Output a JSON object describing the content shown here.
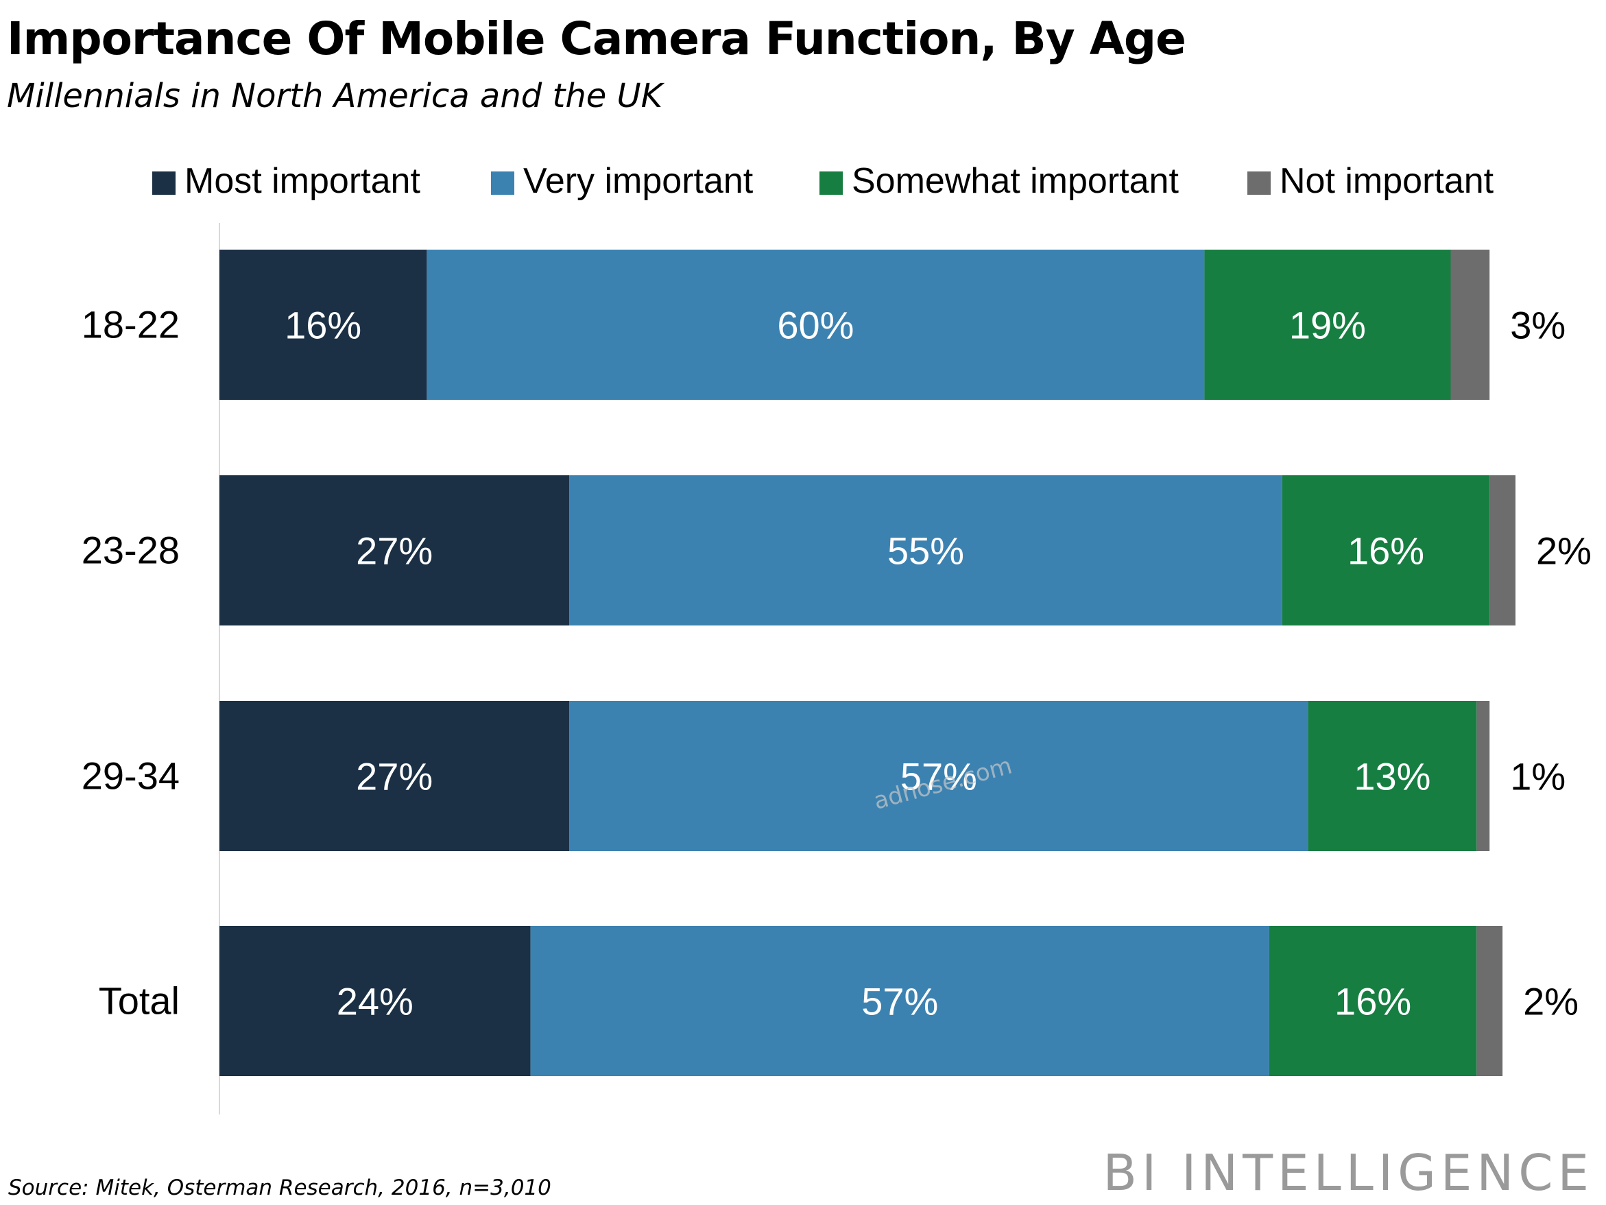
{
  "title": "Importance Of Mobile Camera Function, By Age",
  "subtitle": "Millennials in North America and the UK",
  "source": "Source: Mitek, Osterman Research, 2016, n=3,010",
  "brand": "BI INTELLIGENCE",
  "watermark": "adnose.com",
  "chart_data": {
    "type": "bar",
    "orientation": "horizontal",
    "stacked": true,
    "title": "Importance Of Mobile Camera Function, By Age",
    "subtitle": "Millennials in North America and the UK",
    "categories": [
      "18-22",
      "23-28",
      "29-34",
      "Total"
    ],
    "series": [
      {
        "name": "Most important",
        "color": "#1b3045",
        "values": [
          16,
          27,
          27,
          24
        ],
        "labels": [
          "16%",
          "27%",
          "27%",
          "24%"
        ]
      },
      {
        "name": "Very important",
        "color": "#3c82b1",
        "values": [
          60,
          55,
          57,
          57
        ],
        "labels": [
          "60%",
          "55%",
          "57%",
          "57%"
        ]
      },
      {
        "name": "Somewhat important",
        "color": "#177e42",
        "values": [
          19,
          16,
          13,
          16
        ],
        "labels": [
          "19%",
          "16%",
          "13%",
          "16%"
        ]
      },
      {
        "name": "Not important",
        "color": "#6d6d6d",
        "values": [
          3,
          2,
          1,
          2
        ],
        "labels": [
          "3%",
          "2%",
          "1%",
          "2%"
        ]
      }
    ],
    "value_unit": "%",
    "xlim": [
      0,
      100
    ],
    "legend_position": "top",
    "grid": false,
    "source": "Source: Mitek, Osterman Research, 2016, n=3,010"
  }
}
